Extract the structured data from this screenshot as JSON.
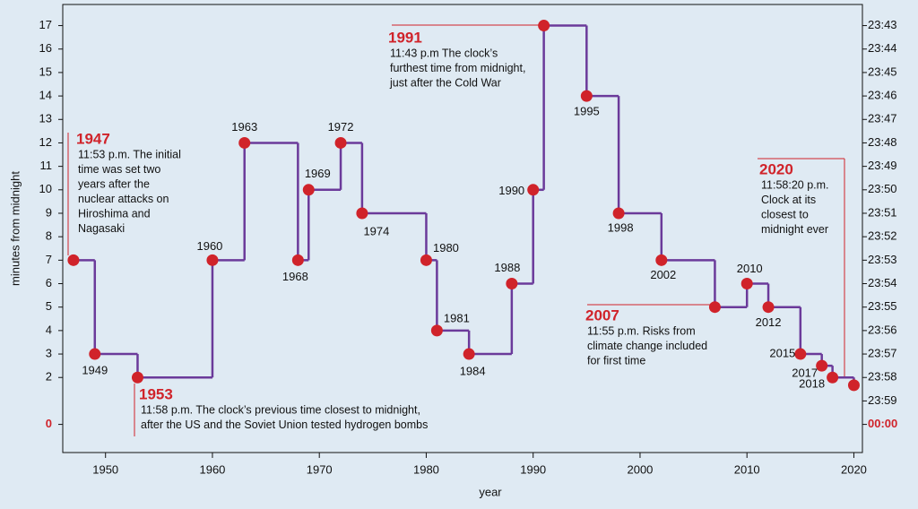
{
  "chart_data": {
    "type": "step",
    "x_label": "year",
    "y_label": "minutes from midnight",
    "x": [
      1947,
      1949,
      1953,
      1960,
      1963,
      1968,
      1969,
      1972,
      1974,
      1980,
      1981,
      1984,
      1988,
      1990,
      1991,
      1995,
      1998,
      2002,
      2007,
      2010,
      2012,
      2015,
      2017,
      2018,
      2020
    ],
    "series": [
      {
        "color": "#6b3a9a",
        "marker_color": "#d0232a",
        "values": [
          7,
          3,
          2,
          7,
          12,
          7,
          10,
          12,
          9,
          7,
          4,
          3,
          6,
          10,
          17,
          14,
          9,
          7,
          5,
          6,
          5,
          3,
          2.5,
          2,
          1.67
        ]
      }
    ],
    "xlim": [
      1946,
      2020.8
    ],
    "xticks": [
      1950,
      1960,
      1970,
      1980,
      1990,
      2000,
      2010,
      2020
    ],
    "ylim": [
      -1.2,
      17.9
    ],
    "yticks": [
      0,
      2,
      3,
      4,
      5,
      6,
      7,
      8,
      9,
      10,
      11,
      12,
      13,
      14,
      15,
      16,
      17
    ],
    "y2lim": [
      -1.2,
      17.9
    ],
    "y2ticks": [
      {
        "value": 0,
        "label": "00:00"
      },
      {
        "value": 1,
        "label": "23:59"
      },
      {
        "value": 2,
        "label": "23:58"
      },
      {
        "value": 3,
        "label": "23:57"
      },
      {
        "value": 4,
        "label": "23:56"
      },
      {
        "value": 5,
        "label": "23:55"
      },
      {
        "value": 6,
        "label": "23:54"
      },
      {
        "value": 7,
        "label": "23:53"
      },
      {
        "value": 8,
        "label": "23:52"
      },
      {
        "value": 9,
        "label": "23:51"
      },
      {
        "value": 10,
        "label": "23:50"
      },
      {
        "value": 11,
        "label": "23:49"
      },
      {
        "value": 12,
        "label": "23:48"
      },
      {
        "value": 13,
        "label": "23:47"
      },
      {
        "value": 14,
        "label": "23:46"
      },
      {
        "value": 15,
        "label": "23:45"
      },
      {
        "value": 16,
        "label": "23:44"
      },
      {
        "value": 17,
        "label": "23:43"
      }
    ],
    "annotations": [
      {
        "title": "1947",
        "lines": [
          "11:53 p.m. The initial",
          "time was set two",
          "years after the",
          "nuclear attacks on",
          "Hiroshima and",
          "Nagasaki"
        ]
      },
      {
        "title": "1953",
        "lines": [
          "11:58 p.m. The clock’s previous time closest to midnight,",
          "after the US and the Soviet Union tested hydrogen bombs"
        ]
      },
      {
        "title": "1991",
        "lines": [
          "11:43 p.m The clock’s",
          "furthest time from midnight,",
          "just after the Cold War"
        ]
      },
      {
        "title": "2007",
        "lines": [
          "11:55 p.m. Risks from",
          "climate change included",
          "for first time"
        ]
      },
      {
        "title": "2020",
        "lines": [
          "11:58:20 p.m.",
          "Clock at its",
          "closest to",
          "midnight ever"
        ]
      }
    ]
  }
}
